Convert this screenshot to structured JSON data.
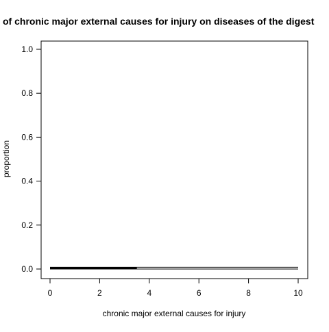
{
  "chart_data": {
    "type": "line",
    "title": "of chronic major external causes for injury on diseases of the digest",
    "xlabel": "chronic major external causes for injury",
    "ylabel": "proportion",
    "xlim": [
      0,
      10
    ],
    "ylim": [
      0,
      1
    ],
    "x_ticks": [
      0,
      2,
      4,
      6,
      8,
      10
    ],
    "x_tick_labels": [
      "0",
      "2",
      "4",
      "6",
      "8",
      "10"
    ],
    "y_ticks": [
      0.0,
      0.2,
      0.4,
      0.6,
      0.8,
      1.0
    ],
    "y_tick_labels": [
      "0.0",
      "0.2",
      "0.4",
      "0.6",
      "0.8",
      "1.0"
    ],
    "grid": false,
    "legend": "none",
    "series": [
      {
        "color": "#000000",
        "x": [
          0,
          10
        ],
        "y": [
          0.008,
          0.008
        ],
        "line_width": 1
      },
      {
        "color": "#000000",
        "x": [
          0,
          10
        ],
        "y": [
          0.0,
          0.0
        ],
        "line_width": 1
      },
      {
        "color": "#000000",
        "x": [
          0,
          3.5
        ],
        "y": [
          0.004,
          0.004
        ],
        "line_width": 3
      }
    ]
  }
}
